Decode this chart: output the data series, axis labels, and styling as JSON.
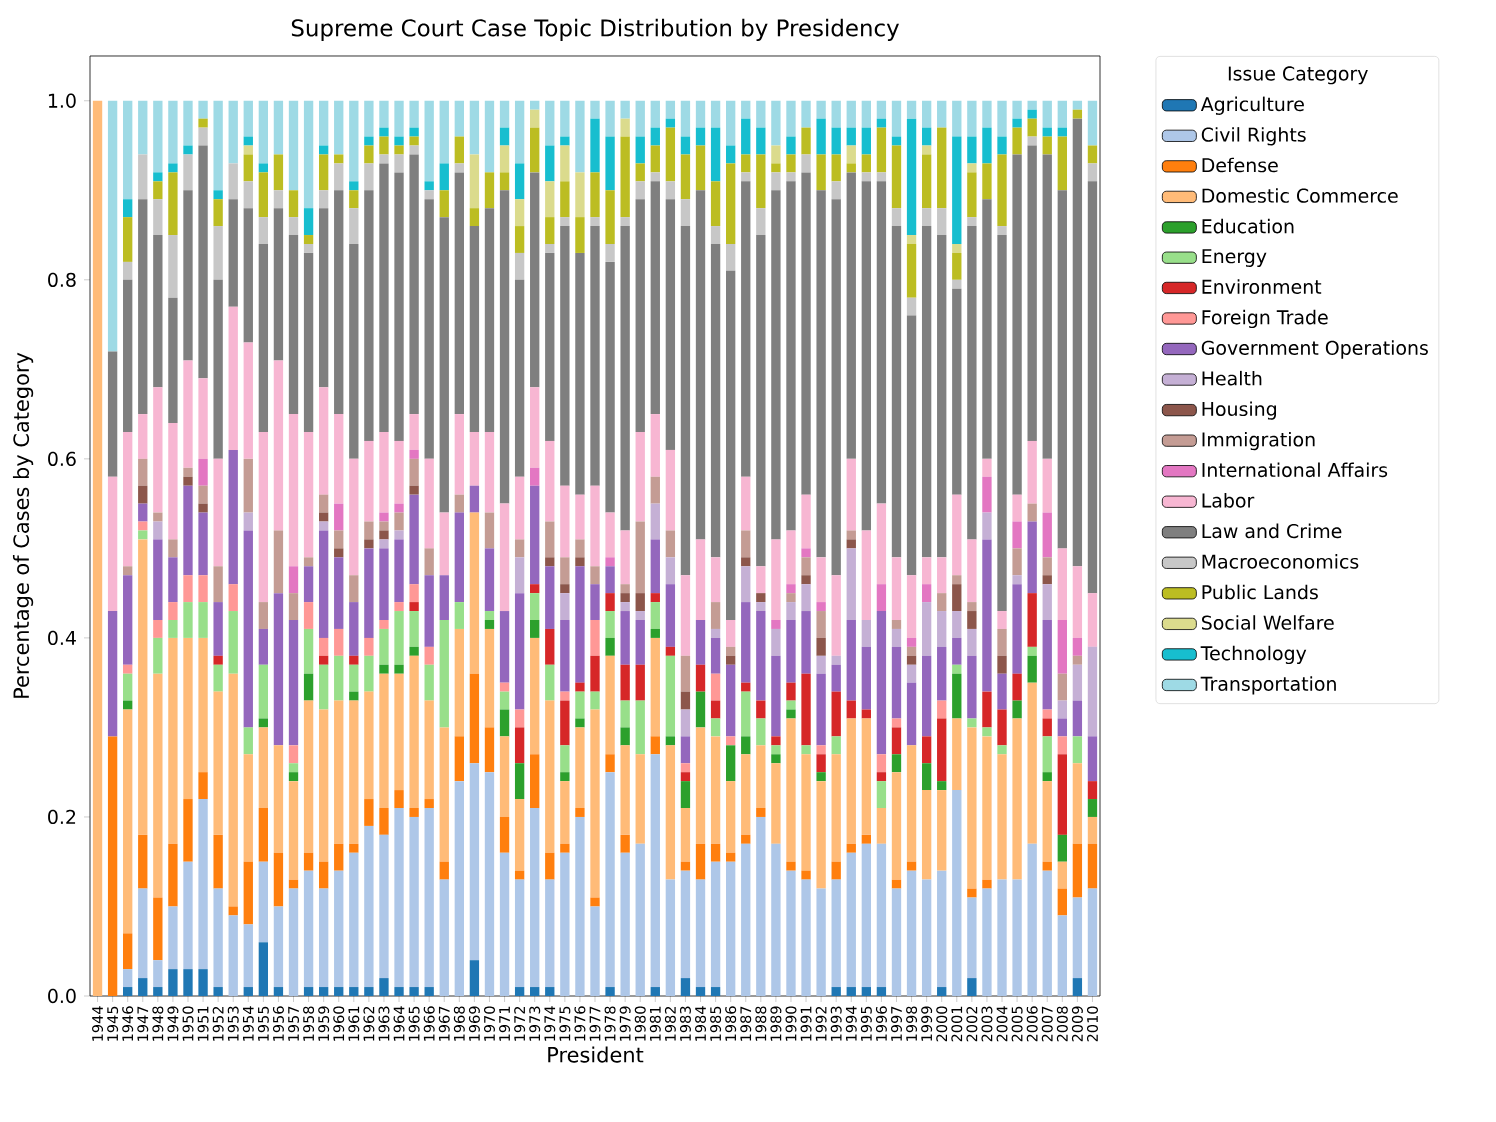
{
  "chart_data": {
    "type": "bar",
    "stacked": true,
    "title": "Supreme Court Case Topic Distribution by Presidency",
    "xlabel": "President",
    "ylabel": "Percentage of Cases by Category",
    "legend_title": "Issue Category",
    "legend": "right",
    "categories": [
      "1944",
      "1945",
      "1946",
      "1947",
      "1948",
      "1949",
      "1950",
      "1951",
      "1952",
      "1953",
      "1954",
      "1955",
      "1956",
      "1957",
      "1958",
      "1959",
      "1960",
      "1961",
      "1962",
      "1963",
      "1964",
      "1965",
      "1966",
      "1967",
      "1968",
      "1969",
      "1970",
      "1971",
      "1972",
      "1973",
      "1974",
      "1975",
      "1976",
      "1977",
      "1978",
      "1979",
      "1980",
      "1981",
      "1982",
      "1983",
      "1984",
      "1985",
      "1986",
      "1987",
      "1988",
      "1989",
      "1990",
      "1991",
      "1992",
      "1993",
      "1994",
      "1995",
      "1996",
      "1997",
      "1998",
      "1999",
      "2000",
      "2001",
      "2002",
      "2003",
      "2004",
      "2005",
      "2006",
      "2007",
      "2008",
      "2009",
      "2010"
    ],
    "ylim": [
      0,
      1.05
    ],
    "yticks": [
      {
        "value": 0,
        "label": "0.0"
      },
      {
        "value": 0.2,
        "label": "0.2"
      },
      {
        "value": 0.4,
        "label": "0.4"
      },
      {
        "value": 0.6,
        "label": "0.6"
      },
      {
        "value": 0.8,
        "label": "0.8"
      },
      {
        "value": 1,
        "label": "1.0"
      }
    ],
    "series": [
      {
        "name": "Agriculture",
        "color": "#1f77b4",
        "values": [
          0,
          0,
          0.01,
          0.02,
          0.01,
          0.03,
          0.03,
          0.03,
          0.01,
          0,
          0.01,
          0.06,
          0.01,
          0,
          0.01,
          0.01,
          0.01,
          0.01,
          0.01,
          0.02,
          0.01,
          0.01,
          0.01,
          0,
          0,
          0.04,
          0,
          0,
          0.01,
          0.01,
          0.01,
          0,
          0,
          0,
          0.01,
          0,
          0,
          0.01,
          0,
          0.02,
          0.01,
          0.01,
          0,
          0,
          0,
          0,
          0,
          0,
          0,
          0.01,
          0.01,
          0.01,
          0.01,
          0,
          0,
          0,
          0.01,
          0,
          0.02,
          0,
          0,
          0,
          0,
          0,
          0,
          0.02,
          0
        ]
      },
      {
        "name": "Civil Rights",
        "color": "#aec7e8",
        "values": [
          0,
          0,
          0.02,
          0.1,
          0.03,
          0.07,
          0.12,
          0.19,
          0.11,
          0.09,
          0.07,
          0.09,
          0.09,
          0.12,
          0.13,
          0.11,
          0.13,
          0.15,
          0.18,
          0.16,
          0.2,
          0.19,
          0.2,
          0.13,
          0.24,
          0.22,
          0.25,
          0.16,
          0.12,
          0.2,
          0.12,
          0.16,
          0.2,
          0.1,
          0.24,
          0.16,
          0.17,
          0.26,
          0.13,
          0.12,
          0.12,
          0.14,
          0.15,
          0.17,
          0.2,
          0.17,
          0.14,
          0.13,
          0.12,
          0.12,
          0.15,
          0.16,
          0.16,
          0.12,
          0.14,
          0.13,
          0.13,
          0.23,
          0.09,
          0.12,
          0.13,
          0.13,
          0.17,
          0.14,
          0.09,
          0.09,
          0.12
        ]
      },
      {
        "name": "Defense",
        "color": "#ff7f0e",
        "values": [
          0,
          0.29,
          0.04,
          0.06,
          0.07,
          0.07,
          0.07,
          0.03,
          0.06,
          0.01,
          0.07,
          0.06,
          0.06,
          0.01,
          0.02,
          0.03,
          0.03,
          0.01,
          0.03,
          0.03,
          0.02,
          0.01,
          0.01,
          0.02,
          0.05,
          0.1,
          0.05,
          0.04,
          0.01,
          0.06,
          0.03,
          0.01,
          0.01,
          0.01,
          0.02,
          0.02,
          0,
          0.02,
          0,
          0.01,
          0.04,
          0.02,
          0.01,
          0.01,
          0.01,
          0,
          0.01,
          0.01,
          0,
          0.02,
          0.01,
          0.01,
          0,
          0.01,
          0.01,
          0,
          0,
          0,
          0.01,
          0.01,
          0,
          0,
          0,
          0.01,
          0.03,
          0.06,
          0.05
        ]
      },
      {
        "name": "Domestic Commerce",
        "color": "#ffbb78",
        "values": [
          1,
          0,
          0.25,
          0.33,
          0.25,
          0.23,
          0.18,
          0.15,
          0.16,
          0.26,
          0.12,
          0.09,
          0.12,
          0.11,
          0.17,
          0.17,
          0.16,
          0.16,
          0.12,
          0.15,
          0.13,
          0.17,
          0.11,
          0.15,
          0.12,
          0.18,
          0.11,
          0.09,
          0.08,
          0.13,
          0.17,
          0.07,
          0.09,
          0.21,
          0.11,
          0.1,
          0.1,
          0.11,
          0.15,
          0.06,
          0.13,
          0.12,
          0.08,
          0.09,
          0.07,
          0.09,
          0.16,
          0.13,
          0.12,
          0.12,
          0.14,
          0.13,
          0.04,
          0.12,
          0.13,
          0.1,
          0.09,
          0.08,
          0.18,
          0.16,
          0.14,
          0.18,
          0.18,
          0.09,
          0.03,
          0.09,
          0.03
        ]
      },
      {
        "name": "Education",
        "color": "#2ca02c",
        "values": [
          0,
          0,
          0.01,
          0,
          0,
          0,
          0,
          0,
          0,
          0,
          0,
          0.01,
          0,
          0.01,
          0.03,
          0,
          0,
          0.01,
          0,
          0.01,
          0.01,
          0.01,
          0,
          0,
          0,
          0,
          0.01,
          0.03,
          0.04,
          0.02,
          0,
          0.01,
          0.01,
          0,
          0.02,
          0.02,
          0,
          0.01,
          0.01,
          0.03,
          0.04,
          0,
          0.04,
          0.02,
          0,
          0.01,
          0.01,
          0,
          0.01,
          0,
          0,
          0,
          0,
          0.02,
          0,
          0.03,
          0.01,
          0.05,
          0,
          0,
          0,
          0.02,
          0.03,
          0.01,
          0.03,
          0,
          0.02
        ]
      },
      {
        "name": "Energy",
        "color": "#98df8a",
        "values": [
          0,
          0,
          0.03,
          0.01,
          0.04,
          0.02,
          0.04,
          0.04,
          0.03,
          0.07,
          0.03,
          0.06,
          0,
          0.01,
          0.05,
          0.05,
          0.05,
          0.03,
          0.04,
          0.04,
          0.06,
          0.04,
          0.04,
          0.12,
          0.03,
          0,
          0.01,
          0.02,
          0,
          0.03,
          0.04,
          0.03,
          0.03,
          0.02,
          0.03,
          0.03,
          0.06,
          0.03,
          0.09,
          0,
          0,
          0.02,
          0,
          0.05,
          0.03,
          0.01,
          0.01,
          0.01,
          0,
          0.02,
          0,
          0,
          0.03,
          0,
          0,
          0,
          0,
          0.01,
          0.01,
          0.01,
          0.01,
          0,
          0.01,
          0.04,
          0,
          0.03,
          0
        ]
      },
      {
        "name": "Environment",
        "color": "#d62728",
        "values": [
          0,
          0,
          0,
          0,
          0,
          0,
          0,
          0,
          0.01,
          0,
          0,
          0,
          0,
          0,
          0,
          0.01,
          0,
          0.01,
          0,
          0,
          0,
          0.01,
          0,
          0,
          0,
          0,
          0,
          0,
          0.04,
          0.01,
          0.04,
          0.05,
          0.01,
          0.04,
          0.02,
          0.04,
          0.04,
          0.01,
          0.01,
          0.01,
          0.03,
          0.02,
          0,
          0.01,
          0.02,
          0.01,
          0.02,
          0.08,
          0.02,
          0.05,
          0.02,
          0.01,
          0.01,
          0.03,
          0,
          0.03,
          0.07,
          0,
          0,
          0.04,
          0.04,
          0.03,
          0.06,
          0.02,
          0.09,
          0,
          0.02
        ]
      },
      {
        "name": "Foreign Trade",
        "color": "#ff9896",
        "values": [
          0,
          0,
          0.01,
          0.01,
          0.02,
          0.02,
          0.03,
          0.03,
          0,
          0.03,
          0,
          0,
          0,
          0.02,
          0.03,
          0.02,
          0.03,
          0,
          0.02,
          0.01,
          0.01,
          0.02,
          0.02,
          0,
          0,
          0,
          0,
          0.01,
          0.02,
          0,
          0,
          0.01,
          0,
          0.04,
          0,
          0,
          0,
          0,
          0,
          0.01,
          0,
          0.03,
          0.01,
          0,
          0,
          0,
          0,
          0,
          0.01,
          0,
          0,
          0,
          0.02,
          0.01,
          0,
          0,
          0.02,
          0,
          0,
          0,
          0,
          0,
          0,
          0.01,
          0.02,
          0,
          0
        ]
      },
      {
        "name": "Government Operations",
        "color": "#9467bd",
        "values": [
          0,
          0.14,
          0.1,
          0.02,
          0.09,
          0.05,
          0.1,
          0.07,
          0.06,
          0.15,
          0.22,
          0.04,
          0.17,
          0.14,
          0.04,
          0.12,
          0.08,
          0.06,
          0.1,
          0.08,
          0.07,
          0.1,
          0.08,
          0.05,
          0.1,
          0.03,
          0.07,
          0.08,
          0.13,
          0.11,
          0.07,
          0.08,
          0.13,
          0.04,
          0.03,
          0.06,
          0.05,
          0.06,
          0.07,
          0.03,
          0.05,
          0.04,
          0.08,
          0.09,
          0.1,
          0.09,
          0.07,
          0.07,
          0.08,
          0.03,
          0.09,
          0.07,
          0.16,
          0.08,
          0.07,
          0.09,
          0.06,
          0.03,
          0.07,
          0.17,
          0.04,
          0.1,
          0.08,
          0.1,
          0.02,
          0.04,
          0.05
        ]
      },
      {
        "name": "Health",
        "color": "#c5b0d5",
        "values": [
          0,
          0,
          0,
          0,
          0.02,
          0,
          0,
          0,
          0,
          0,
          0.02,
          0,
          0,
          0,
          0,
          0.01,
          0,
          0,
          0,
          0.01,
          0.01,
          0,
          0,
          0,
          0,
          0,
          0,
          0,
          0.04,
          0,
          0,
          0.03,
          0,
          0,
          0,
          0.01,
          0.01,
          0.04,
          0.03,
          0.03,
          0,
          0.01,
          0,
          0.04,
          0.01,
          0.03,
          0.02,
          0.03,
          0.02,
          0.01,
          0.08,
          0.03,
          0,
          0.02,
          0.02,
          0.06,
          0.04,
          0.03,
          0.03,
          0.03,
          0,
          0.01,
          0,
          0.04,
          0.02,
          0.04,
          0.1
        ]
      },
      {
        "name": "Housing",
        "color": "#8c564b",
        "values": [
          0,
          0,
          0,
          0.02,
          0,
          0,
          0.01,
          0.01,
          0,
          0,
          0,
          0,
          0,
          0,
          0,
          0.01,
          0.01,
          0,
          0.01,
          0.01,
          0,
          0.01,
          0,
          0,
          0,
          0,
          0,
          0,
          0,
          0,
          0.01,
          0.01,
          0.01,
          0,
          0,
          0.01,
          0.02,
          0,
          0,
          0.02,
          0,
          0,
          0.01,
          0.01,
          0.01,
          0,
          0,
          0.01,
          0.02,
          0,
          0.01,
          0,
          0,
          0,
          0.01,
          0,
          0,
          0.03,
          0.02,
          0,
          0.02,
          0,
          0,
          0.01,
          0,
          0,
          0
        ]
      },
      {
        "name": "Immigration",
        "color": "#c49c94",
        "values": [
          0,
          0,
          0.01,
          0.03,
          0.01,
          0.02,
          0.01,
          0.02,
          0.04,
          0,
          0.06,
          0.03,
          0.07,
          0.03,
          0.01,
          0.02,
          0.02,
          0.03,
          0.02,
          0.01,
          0.02,
          0.03,
          0.03,
          0,
          0.02,
          0,
          0.04,
          0,
          0.02,
          0,
          0.04,
          0.03,
          0.02,
          0.02,
          0,
          0.01,
          0.08,
          0.03,
          0.03,
          0.04,
          0,
          0.03,
          0.01,
          0.03,
          0,
          0,
          0.01,
          0.02,
          0.03,
          0,
          0.01,
          0,
          0,
          0.01,
          0.01,
          0,
          0.02,
          0.01,
          0.01,
          0,
          0.03,
          0.03,
          0.02,
          0.02,
          0.03,
          0.01,
          0
        ]
      },
      {
        "name": "International Affairs",
        "color": "#e377c2",
        "values": [
          0,
          0,
          0,
          0,
          0,
          0,
          0,
          0.03,
          0,
          0,
          0,
          0,
          0,
          0.03,
          0,
          0,
          0.03,
          0,
          0,
          0.01,
          0.01,
          0.01,
          0,
          0,
          0,
          0,
          0,
          0,
          0,
          0.02,
          0,
          0,
          0,
          0,
          0.01,
          0,
          0,
          0,
          0,
          0,
          0,
          0,
          0,
          0,
          0,
          0.01,
          0.01,
          0.01,
          0.01,
          0,
          0,
          0,
          0.03,
          0,
          0.01,
          0.02,
          0,
          0,
          0,
          0.04,
          0,
          0.03,
          0,
          0.05,
          0.06,
          0.02,
          0
        ]
      },
      {
        "name": "Labor",
        "color": "#f7b6d2",
        "values": [
          0,
          0.15,
          0.15,
          0.05,
          0.14,
          0.13,
          0.12,
          0.09,
          0.12,
          0.16,
          0.13,
          0.19,
          0.19,
          0.17,
          0.14,
          0.12,
          0.1,
          0.13,
          0.09,
          0.09,
          0.07,
          0.04,
          0.1,
          0.07,
          0.09,
          0.06,
          0.09,
          0.12,
          0.07,
          0.09,
          0.09,
          0.08,
          0.05,
          0.09,
          0.05,
          0.06,
          0.1,
          0.07,
          0.09,
          0.09,
          0.09,
          0.05,
          0.03,
          0.06,
          0.03,
          0.09,
          0.06,
          0.06,
          0.05,
          0.09,
          0.08,
          0.1,
          0.09,
          0.07,
          0.07,
          0.03,
          0.04,
          0.09,
          0.07,
          0.02,
          0.02,
          0.03,
          0.07,
          0.06,
          0.08,
          0.08,
          0.06
        ]
      },
      {
        "name": "Law and Crime",
        "color": "#7f7f7f",
        "values": [
          0,
          0.14,
          0.17,
          0.24,
          0.17,
          0.14,
          0.19,
          0.26,
          0.2,
          0.12,
          0.15,
          0.21,
          0.17,
          0.2,
          0.2,
          0.2,
          0.25,
          0.24,
          0.28,
          0.3,
          0.3,
          0.29,
          0.29,
          0.33,
          0.27,
          0.23,
          0.25,
          0.35,
          0.22,
          0.24,
          0.21,
          0.29,
          0.27,
          0.29,
          0.28,
          0.34,
          0.26,
          0.26,
          0.28,
          0.39,
          0.39,
          0.35,
          0.39,
          0.33,
          0.37,
          0.39,
          0.39,
          0.36,
          0.41,
          0.42,
          0.32,
          0.39,
          0.36,
          0.37,
          0.29,
          0.37,
          0.36,
          0.23,
          0.35,
          0.29,
          0.42,
          0.38,
          0.33,
          0.34,
          0.4,
          0.5,
          0.46
        ]
      },
      {
        "name": "Macroeconomics",
        "color": "#c7c7c7",
        "values": [
          0,
          0,
          0.02,
          0.05,
          0.04,
          0.07,
          0.04,
          0.02,
          0.06,
          0.04,
          0.03,
          0.03,
          0.02,
          0.02,
          0.01,
          0.02,
          0.03,
          0.04,
          0.03,
          0.01,
          0.02,
          0.01,
          0.01,
          0,
          0.01,
          0,
          0,
          0,
          0.03,
          0,
          0.01,
          0.01,
          0,
          0.01,
          0.02,
          0.01,
          0.02,
          0.01,
          0.02,
          0.03,
          0,
          0.02,
          0.03,
          0.01,
          0.03,
          0.02,
          0.01,
          0.02,
          0,
          0.02,
          0,
          0.01,
          0.01,
          0.02,
          0.02,
          0.02,
          0.03,
          0.01,
          0.01,
          0,
          0.01,
          0,
          0.01,
          0,
          0,
          0,
          0.02
        ]
      },
      {
        "name": "Public Lands",
        "color": "#bcbd22",
        "values": [
          0,
          0,
          0.05,
          0,
          0.02,
          0.07,
          0,
          0.01,
          0.03,
          0,
          0.03,
          0.05,
          0.04,
          0.03,
          0.01,
          0.04,
          0.01,
          0.02,
          0.02,
          0.02,
          0.01,
          0.01,
          0,
          0.03,
          0.03,
          0.02,
          0.04,
          0.02,
          0.03,
          0.05,
          0.03,
          0.04,
          0.04,
          0.05,
          0.06,
          0.09,
          0.02,
          0.03,
          0.06,
          0.05,
          0.05,
          0.05,
          0.09,
          0.02,
          0.06,
          0.01,
          0.02,
          0.03,
          0.04,
          0.03,
          0.01,
          0.02,
          0.05,
          0.07,
          0.06,
          0.06,
          0.09,
          0.03,
          0.05,
          0.04,
          0.08,
          0.03,
          0.02,
          0.02,
          0.06,
          0.01,
          0.02
        ]
      },
      {
        "name": "Social Welfare",
        "color": "#dbdb8d",
        "values": [
          0,
          0,
          0,
          0,
          0,
          0,
          0,
          0,
          0,
          0,
          0.01,
          0,
          0,
          0,
          0,
          0,
          0,
          0,
          0,
          0,
          0,
          0,
          0,
          0,
          0,
          0.06,
          0,
          0.03,
          0.03,
          0.02,
          0.04,
          0.04,
          0.05,
          0,
          0,
          0.02,
          0,
          0,
          0,
          0,
          0,
          0,
          0,
          0,
          0,
          0.02,
          0,
          0,
          0,
          0,
          0.02,
          0,
          0,
          0,
          0.01,
          0.01,
          0,
          0.01,
          0.01,
          0,
          0,
          0,
          0,
          0,
          0,
          0,
          0
        ]
      },
      {
        "name": "Technology",
        "color": "#17becf",
        "values": [
          0,
          0,
          0.02,
          0,
          0.01,
          0.01,
          0.01,
          0,
          0.01,
          0,
          0.01,
          0.01,
          0,
          0,
          0.03,
          0.01,
          0,
          0.01,
          0.01,
          0.01,
          0.01,
          0.01,
          0.01,
          0.03,
          0,
          0,
          0,
          0.02,
          0.04,
          0,
          0.04,
          0.01,
          0,
          0.06,
          0.06,
          0,
          0.03,
          0.02,
          0.01,
          0.02,
          0.02,
          0.06,
          0.02,
          0.04,
          0.03,
          0,
          0.02,
          0,
          0.04,
          0.03,
          0.02,
          0.03,
          0.01,
          0.01,
          0.13,
          0.02,
          0,
          0.12,
          0.03,
          0.04,
          0.02,
          0.01,
          0.01,
          0.01,
          0.01,
          0,
          0
        ]
      },
      {
        "name": "Transportation",
        "color": "#9edae5",
        "values": [
          0,
          0.28,
          0.11,
          0.06,
          0.08,
          0.07,
          0.05,
          0.02,
          0.1,
          0.07,
          0.04,
          0.07,
          0.06,
          0.1,
          0.12,
          0.05,
          0.06,
          0.09,
          0.04,
          0.03,
          0.04,
          0.03,
          0.09,
          0.07,
          0.04,
          0.06,
          0.08,
          0.03,
          0.07,
          0.01,
          0.05,
          0.04,
          0.08,
          0.02,
          0.04,
          0.02,
          0.04,
          0.03,
          0.02,
          0.04,
          0.03,
          0.03,
          0.05,
          0.02,
          0.03,
          0.05,
          0.04,
          0.03,
          0.02,
          0.03,
          0.03,
          0.03,
          0.02,
          0.04,
          0.02,
          0.03,
          0.03,
          0.04,
          0.04,
          0.03,
          0.04,
          0.02,
          0.01,
          0.03,
          0.03,
          0.01,
          0.05
        ]
      }
    ]
  }
}
